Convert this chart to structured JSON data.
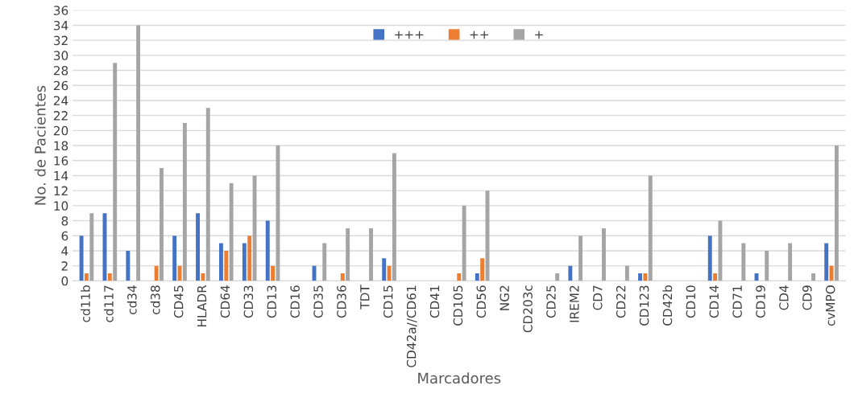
{
  "chart_data": {
    "type": "bar",
    "xlabel": "Marcadores",
    "ylabel": "No. de Pacientes",
    "categories": [
      "cd11b",
      "cd117",
      "cd34",
      "cd38",
      "CD45",
      "HLADR",
      "CD64",
      "CD33",
      "CD13",
      "CD16",
      "CD35",
      "CD36",
      "TDT",
      "CD15",
      "CD42a//CD61",
      "CD41",
      "CD105",
      "CD56",
      "NG2",
      "CD203c",
      "CD25",
      "IREM2",
      "CD7",
      "CD22",
      "CD123",
      "CD42b",
      "CD10",
      "CD14",
      "CD71",
      "CD19",
      "CD4",
      "CD9",
      "cvMPO"
    ],
    "series": [
      {
        "name": "+++",
        "color": "#4472c4",
        "values": [
          6,
          9,
          4,
          0,
          6,
          9,
          5,
          5,
          8,
          0,
          2,
          0,
          0,
          3,
          0,
          0,
          0,
          1,
          0,
          0,
          0,
          2,
          0,
          0,
          1,
          0,
          0,
          6,
          0,
          1,
          0,
          0,
          5
        ]
      },
      {
        "name": "++",
        "color": "#ed7d31",
        "values": [
          1,
          1,
          0,
          2,
          2,
          1,
          4,
          6,
          2,
          0,
          0,
          1,
          0,
          2,
          0,
          0,
          1,
          3,
          0,
          0,
          0,
          0,
          0,
          0,
          1,
          0,
          0,
          1,
          0,
          0,
          0,
          0,
          2
        ]
      },
      {
        "name": "+",
        "color": "#a5a5a5",
        "values": [
          9,
          29,
          34,
          15,
          21,
          23,
          13,
          14,
          18,
          0,
          5,
          7,
          7,
          17,
          0,
          0,
          10,
          12,
          0,
          0,
          1,
          6,
          7,
          2,
          14,
          0,
          0,
          8,
          5,
          4,
          5,
          1,
          18
        ]
      }
    ],
    "ylim": [
      0,
      36
    ],
    "yticks": [
      0,
      2,
      4,
      6,
      8,
      10,
      12,
      14,
      16,
      18,
      20,
      22,
      24,
      26,
      28,
      30,
      32,
      34,
      36
    ],
    "grid": "y",
    "legend": "top"
  }
}
